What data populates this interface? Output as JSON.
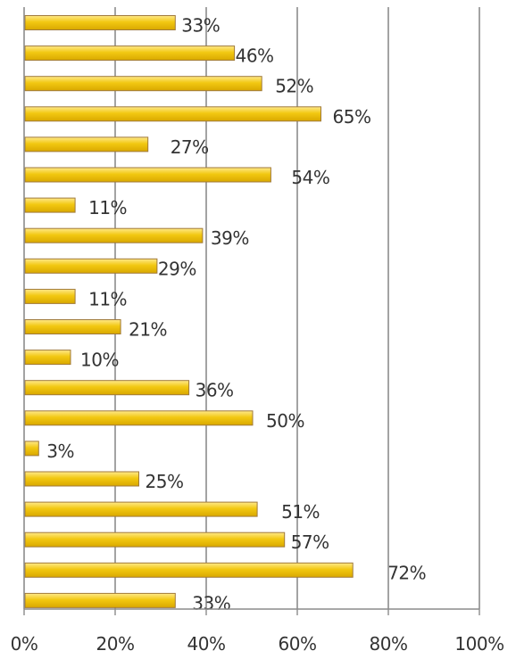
{
  "chart_data": {
    "type": "bar",
    "orientation": "horizontal",
    "values": [
      33,
      46,
      52,
      65,
      27,
      54,
      11,
      39,
      29,
      11,
      21,
      10,
      36,
      50,
      3,
      25,
      51,
      57,
      72,
      33
    ],
    "data_labels": [
      "33%",
      "46%",
      "52%",
      "65%",
      "27%",
      "54%",
      "11%",
      "39%",
      "29%",
      "11%",
      "21%",
      "10%",
      "36%",
      "50%",
      "3%",
      "25%",
      "51%",
      "57%",
      "72%",
      "33%"
    ],
    "xlim": [
      0,
      100
    ],
    "x_ticks": [
      "0%",
      "20%",
      "40%",
      "60%",
      "80%",
      "100%"
    ],
    "x_tick_values": [
      0,
      20,
      40,
      60,
      80,
      100
    ],
    "grid": true,
    "legend": "none",
    "colors": {
      "bar_fill_light": "#ffe98a",
      "bar_fill_mid": "#f2c811",
      "bar_fill_dark": "#d9a800",
      "bar_stroke": "#a07a3a",
      "gridline": "#8c8c8c",
      "text": "#333333"
    }
  }
}
